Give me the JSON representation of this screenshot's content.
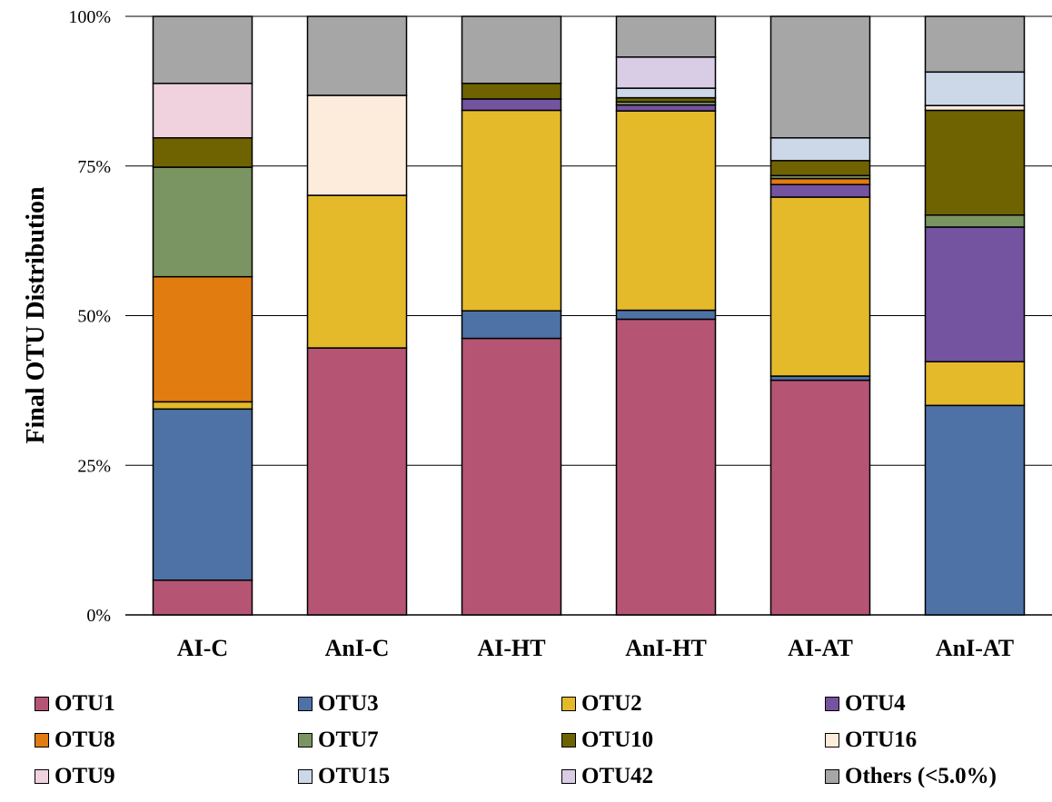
{
  "chart_data": {
    "type": "bar",
    "stacked": true,
    "percent": true,
    "title": "",
    "xlabel": "",
    "ylabel": "Final OTU Distribution",
    "ylim": [
      0,
      100
    ],
    "yticks": [
      "0%",
      "25%",
      "50%",
      "75%",
      "100%"
    ],
    "grid": "horizontal",
    "legend_position": "bottom",
    "categories": [
      "AI-C",
      "AnI-C",
      "AI-HT",
      "AnI-HT",
      "AI-AT",
      "AnI-AT"
    ],
    "series": [
      {
        "name": "OTU1",
        "color": "#b55573",
        "values": [
          5.8,
          44.6,
          46.2,
          49.4,
          39.2,
          0.0
        ]
      },
      {
        "name": "OTU3",
        "color": "#4e72a5",
        "values": [
          28.6,
          0.0,
          4.6,
          1.5,
          0.7,
          35.0
        ]
      },
      {
        "name": "OTU2",
        "color": "#e4ba2b",
        "values": [
          1.2,
          25.5,
          33.5,
          33.3,
          29.9,
          7.3
        ]
      },
      {
        "name": "OTU4",
        "color": "#7453a0",
        "values": [
          0.0,
          0.0,
          1.9,
          1.0,
          2.1,
          22.5
        ]
      },
      {
        "name": "OTU8",
        "color": "#e07c10",
        "values": [
          20.9,
          0.0,
          0.0,
          0.0,
          1.0,
          0.0
        ]
      },
      {
        "name": "OTU7",
        "color": "#7b9562",
        "values": [
          18.3,
          0.0,
          0.0,
          0.5,
          0.5,
          2.0
        ]
      },
      {
        "name": "OTU10",
        "color": "#6f6301",
        "values": [
          4.9,
          0.0,
          2.6,
          0.7,
          2.5,
          17.5
        ]
      },
      {
        "name": "OTU16",
        "color": "#fdecdc",
        "values": [
          0.0,
          16.7,
          0.0,
          0.0,
          0.0,
          0.8
        ]
      },
      {
        "name": "OTU9",
        "color": "#efd2de",
        "values": [
          9.1,
          0.0,
          0.0,
          0.0,
          0.0,
          0.0
        ]
      },
      {
        "name": "OTU15",
        "color": "#ccd8e8",
        "values": [
          0.0,
          0.0,
          0.0,
          1.6,
          3.8,
          5.6
        ]
      },
      {
        "name": "OTU42",
        "color": "#d9cce5",
        "values": [
          0.0,
          0.0,
          0.0,
          5.2,
          0.0,
          0.0
        ]
      },
      {
        "name": "Others (<5.0%)",
        "color": "#a6a6a6",
        "values": [
          11.2,
          13.2,
          11.2,
          6.8,
          20.3,
          9.3
        ]
      }
    ]
  }
}
